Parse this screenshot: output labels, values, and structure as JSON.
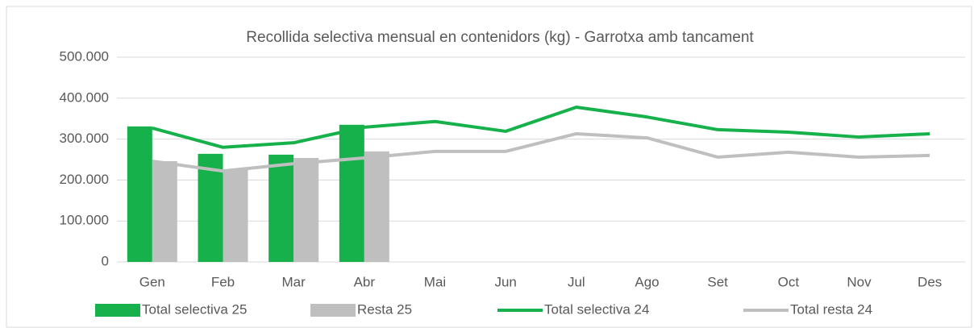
{
  "chart_data": {
    "type": "combo",
    "title": "Recollida selectiva mensual en contenidors (kg) - Garrotxa amb tancament",
    "categories": [
      "Gen",
      "Feb",
      "Mar",
      "Abr",
      "Mai",
      "Jun",
      "Jul",
      "Ago",
      "Set",
      "Oct",
      "Nov",
      "Des"
    ],
    "series": [
      {
        "name": "Total selectiva 25",
        "kind": "bar",
        "color": "#16b14b",
        "values": [
          331000,
          264000,
          262000,
          335000,
          null,
          null,
          null,
          null,
          null,
          null,
          null,
          null
        ]
      },
      {
        "name": "Resta 25",
        "kind": "bar",
        "color": "#bfbfbf",
        "values": [
          246000,
          226000,
          254000,
          270000,
          null,
          null,
          null,
          null,
          null,
          null,
          null,
          null
        ]
      },
      {
        "name": "Total selectiva 24",
        "kind": "line",
        "color": "#16b14b",
        "values": [
          327000,
          280000,
          291000,
          329000,
          343000,
          319000,
          378000,
          354000,
          323000,
          317000,
          305000,
          313000
        ]
      },
      {
        "name": "Total resta 24",
        "kind": "line",
        "color": "#bfbfbf",
        "values": [
          246000,
          222000,
          240000,
          254000,
          270000,
          270000,
          313000,
          303000,
          256000,
          268000,
          256000,
          260000
        ]
      }
    ],
    "ylim": [
      0,
      500000
    ],
    "yticks": [
      0,
      {
        "value": 100000,
        "label": "100.000"
      },
      {
        "value": 200000,
        "label": "200.000"
      },
      {
        "value": 300000,
        "label": "300.000"
      },
      {
        "value": 400000,
        "label": "400.000"
      },
      {
        "value": 500000,
        "label": "500.000"
      }
    ],
    "grid": true,
    "legend": "bottom"
  }
}
